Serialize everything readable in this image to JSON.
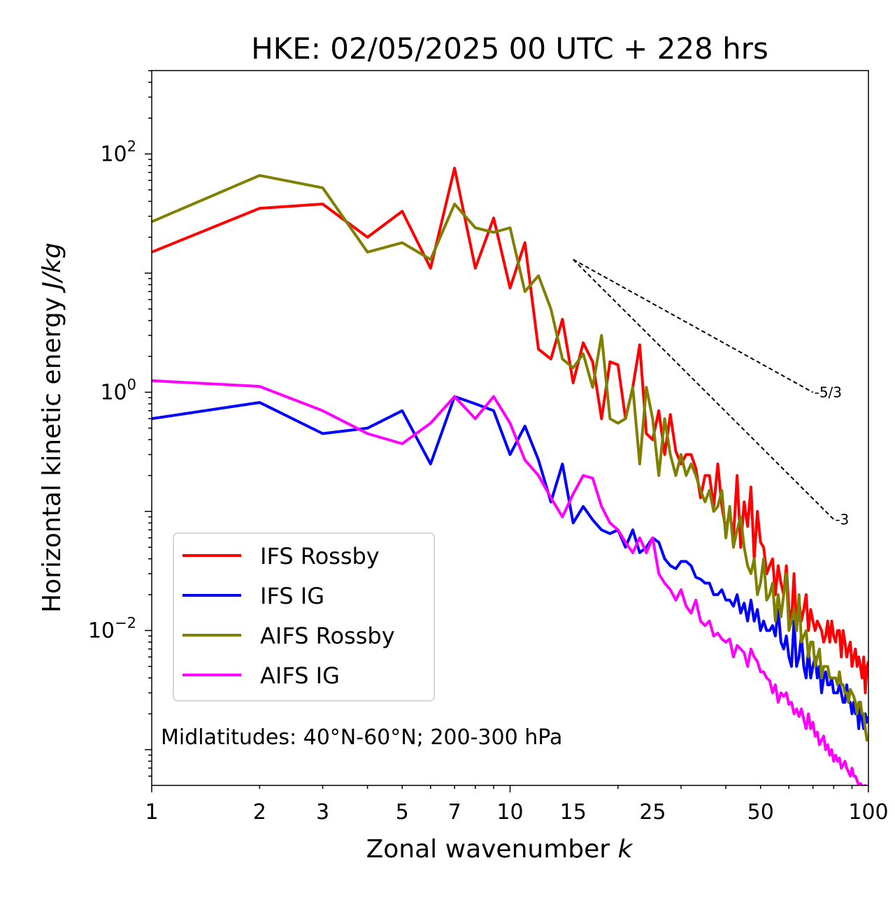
{
  "chart_data": {
    "type": "line",
    "title": "HKE: 02/05/2025 00 UTC + 228 hrs",
    "xlabel": "Zonal wavenumber",
    "xlabel_var": "k",
    "ylabel": "Horizontal kinetic energy",
    "ylabel_units": "J/kg",
    "x_scale": "log",
    "y_scale": "log",
    "xlim": [
      1,
      100
    ],
    "ylim_log10": [
      -3.3,
      2.7
    ],
    "x_ticks": [
      1,
      2,
      3,
      5,
      7,
      10,
      15,
      25,
      50,
      100
    ],
    "x_tick_labels": [
      "1",
      "2",
      "3",
      "5",
      "7",
      "10",
      "15",
      "25",
      "50",
      "100"
    ],
    "y_ticks_log10": [
      -2,
      0,
      2
    ],
    "y_tick_bases": [
      "10",
      "10",
      "10"
    ],
    "y_tick_exponents": [
      "−2",
      "0",
      "2"
    ],
    "annotation": "Midlatitudes: 40°N-60°N; 200-300 hPa",
    "legend": {
      "position": "lower-left"
    },
    "reference_lines": [
      {
        "label": "-5/3",
        "slope": -1.6667,
        "x_start": 15,
        "x_end": 70,
        "y_start": 13
      },
      {
        "label": "-3",
        "slope": -3,
        "x_start": 15,
        "x_end": 80,
        "y_start": 13
      }
    ],
    "series": [
      {
        "name": "IFS Rossby",
        "color": "#ff0000",
        "x": [
          1,
          2,
          3,
          4,
          5,
          6,
          7,
          8,
          9,
          10,
          11,
          12,
          13,
          14,
          15,
          16,
          17,
          18,
          19,
          20,
          21,
          22,
          23,
          24,
          25,
          26,
          27,
          28,
          29,
          30,
          31,
          32,
          33,
          34,
          35,
          36,
          37,
          38,
          39,
          40,
          41,
          42,
          43,
          44,
          45,
          46,
          47,
          48,
          49,
          50,
          51,
          52,
          53,
          54,
          55,
          56,
          57,
          58,
          59,
          60,
          61,
          62,
          63,
          64,
          65,
          66,
          67,
          68,
          69,
          70,
          71,
          72,
          73,
          74,
          75,
          76,
          77,
          78,
          79,
          80,
          81,
          82,
          83,
          84,
          85,
          86,
          87,
          88,
          89,
          90,
          91,
          92,
          93,
          94,
          95,
          96,
          97,
          98,
          99,
          100
        ],
        "y": [
          15,
          35,
          38,
          20,
          33,
          11,
          76,
          11,
          29,
          7.5,
          18,
          2.3,
          1.9,
          4.1,
          1.2,
          2.6,
          1.8,
          0.6,
          1.8,
          1.7,
          0.6,
          1.1,
          2.5,
          0.45,
          0.4,
          0.7,
          0.3,
          0.65,
          0.32,
          0.25,
          0.3,
          0.3,
          0.23,
          0.13,
          0.2,
          0.2,
          0.11,
          0.25,
          0.11,
          0.07,
          0.1,
          0.06,
          0.2,
          0.05,
          0.12,
          0.075,
          0.16,
          0.04,
          0.1,
          0.055,
          0.05,
          0.03,
          0.035,
          0.04,
          0.02,
          0.035,
          0.025,
          0.02,
          0.035,
          0.015,
          0.012,
          0.03,
          0.01,
          0.018,
          0.012,
          0.015,
          0.02,
          0.01,
          0.015,
          0.012,
          0.01,
          0.012,
          0.011,
          0.01,
          0.008,
          0.009,
          0.012,
          0.008,
          0.012,
          0.009,
          0.008,
          0.01,
          0.01,
          0.006,
          0.01,
          0.008,
          0.006,
          0.007,
          0.008,
          0.005,
          0.006,
          0.007,
          0.005,
          0.006,
          0.005,
          0.004,
          0.006,
          0.003,
          0.005,
          0.0055
        ]
      },
      {
        "name": "IFS IG",
        "color": "#0000ff",
        "x": [
          1,
          2,
          3,
          4,
          5,
          6,
          7,
          8,
          9,
          10,
          11,
          12,
          13,
          14,
          15,
          16,
          17,
          18,
          19,
          20,
          21,
          22,
          23,
          24,
          25,
          26,
          27,
          28,
          29,
          30,
          31,
          32,
          33,
          34,
          35,
          36,
          37,
          38,
          39,
          40,
          41,
          42,
          43,
          44,
          45,
          46,
          47,
          48,
          49,
          50,
          51,
          52,
          53,
          54,
          55,
          56,
          57,
          58,
          59,
          60,
          61,
          62,
          63,
          64,
          65,
          66,
          67,
          68,
          69,
          70,
          71,
          72,
          73,
          74,
          75,
          76,
          77,
          78,
          79,
          80,
          81,
          82,
          83,
          84,
          85,
          86,
          87,
          88,
          89,
          90,
          91,
          92,
          93,
          94,
          95,
          96,
          97,
          98,
          99,
          100
        ],
        "y": [
          0.6,
          0.82,
          0.45,
          0.5,
          0.7,
          0.25,
          0.92,
          0.8,
          0.7,
          0.3,
          0.52,
          0.27,
          0.12,
          0.25,
          0.08,
          0.11,
          0.085,
          0.07,
          0.065,
          0.07,
          0.05,
          0.07,
          0.045,
          0.05,
          0.06,
          0.055,
          0.04,
          0.035,
          0.033,
          0.038,
          0.038,
          0.035,
          0.028,
          0.027,
          0.025,
          0.025,
          0.02,
          0.02,
          0.022,
          0.018,
          0.018,
          0.016,
          0.02,
          0.014,
          0.017,
          0.012,
          0.018,
          0.012,
          0.015,
          0.01,
          0.012,
          0.01,
          0.01,
          0.011,
          0.009,
          0.015,
          0.008,
          0.007,
          0.009,
          0.006,
          0.005,
          0.012,
          0.005,
          0.006,
          0.009,
          0.005,
          0.004,
          0.007,
          0.004,
          0.005,
          0.006,
          0.004,
          0.005,
          0.003,
          0.004,
          0.0045,
          0.0035,
          0.0035,
          0.004,
          0.003,
          0.003,
          0.003,
          0.0035,
          0.003,
          0.0025,
          0.0025,
          0.0035,
          0.0025,
          0.0025,
          0.002,
          0.0025,
          0.002,
          0.0022,
          0.0015,
          0.0025,
          0.0018,
          0.0015,
          0.002,
          0.0017,
          0.0019
        ]
      },
      {
        "name": "AIFS Rossby",
        "color": "#808000",
        "x": [
          1,
          2,
          3,
          4,
          5,
          6,
          7,
          8,
          9,
          10,
          11,
          12,
          13,
          14,
          15,
          16,
          17,
          18,
          19,
          20,
          21,
          22,
          23,
          24,
          25,
          26,
          27,
          28,
          29,
          30,
          31,
          32,
          33,
          34,
          35,
          36,
          37,
          38,
          39,
          40,
          41,
          42,
          43,
          44,
          45,
          46,
          47,
          48,
          49,
          50,
          51,
          52,
          53,
          54,
          55,
          56,
          57,
          58,
          59,
          60,
          61,
          62,
          63,
          64,
          65,
          66,
          67,
          68,
          69,
          70,
          71,
          72,
          73,
          74,
          75,
          76,
          77,
          78,
          79,
          80,
          81,
          82,
          83,
          84,
          85,
          86,
          87,
          88,
          89,
          90,
          91,
          92,
          93,
          94,
          95,
          96,
          97,
          98,
          99,
          100
        ],
        "y": [
          27,
          66,
          52,
          15,
          18,
          13,
          38,
          24,
          22,
          24,
          7,
          9.5,
          5,
          1.9,
          1.6,
          2.1,
          1.1,
          3,
          0.6,
          0.55,
          0.6,
          1.1,
          0.25,
          1.1,
          0.6,
          0.2,
          0.6,
          0.3,
          0.2,
          0.3,
          0.2,
          0.25,
          0.2,
          0.15,
          0.12,
          0.15,
          0.1,
          0.11,
          0.15,
          0.06,
          0.11,
          0.05,
          0.07,
          0.09,
          0.05,
          0.035,
          0.03,
          0.04,
          0.02,
          0.025,
          0.04,
          0.018,
          0.02,
          0.025,
          0.012,
          0.02,
          0.013,
          0.02,
          0.03,
          0.01,
          0.012,
          0.015,
          0.01,
          0.02,
          0.008,
          0.009,
          0.01,
          0.006,
          0.008,
          0.008,
          0.005,
          0.006,
          0.007,
          0.004,
          0.005,
          0.005,
          0.005,
          0.004,
          0.004,
          0.004,
          0.004,
          0.0035,
          0.0045,
          0.0035,
          0.0035,
          0.003,
          0.003,
          0.0025,
          0.0032,
          0.003,
          0.0028,
          0.0025,
          0.002,
          0.0025,
          0.0025,
          0.002,
          0.002,
          0.0015,
          0.0012,
          0.0013
        ]
      },
      {
        "name": "AIFS IG",
        "color": "#ff00ff",
        "x": [
          1,
          2,
          3,
          4,
          5,
          6,
          7,
          8,
          9,
          10,
          11,
          12,
          13,
          14,
          15,
          16,
          17,
          18,
          19,
          20,
          21,
          22,
          23,
          24,
          25,
          26,
          27,
          28,
          29,
          30,
          31,
          32,
          33,
          34,
          35,
          36,
          37,
          38,
          39,
          40,
          41,
          42,
          43,
          44,
          45,
          46,
          47,
          48,
          49,
          50,
          51,
          52,
          53,
          54,
          55,
          56,
          57,
          58,
          59,
          60,
          61,
          62,
          63,
          64,
          65,
          66,
          67,
          68,
          69,
          70,
          71,
          72,
          73,
          74,
          75,
          76,
          77,
          78,
          79,
          80,
          81,
          82,
          83,
          84,
          85,
          86,
          87,
          88,
          89,
          90,
          91,
          92,
          93,
          94,
          95,
          96,
          97,
          98,
          99,
          100
        ],
        "y": [
          1.25,
          1.12,
          0.7,
          0.45,
          0.37,
          0.55,
          0.92,
          0.6,
          0.92,
          0.55,
          0.27,
          0.2,
          0.13,
          0.09,
          0.14,
          0.2,
          0.19,
          0.11,
          0.08,
          0.07,
          0.055,
          0.045,
          0.06,
          0.045,
          0.06,
          0.03,
          0.025,
          0.022,
          0.018,
          0.022,
          0.016,
          0.014,
          0.018,
          0.012,
          0.011,
          0.012,
          0.009,
          0.0095,
          0.0085,
          0.008,
          0.0085,
          0.006,
          0.0075,
          0.007,
          0.0065,
          0.005,
          0.007,
          0.006,
          0.0055,
          0.0045,
          0.0045,
          0.004,
          0.0038,
          0.003,
          0.0035,
          0.0025,
          0.003,
          0.0028,
          0.003,
          0.0024,
          0.0025,
          0.002,
          0.0022,
          0.0019,
          0.0022,
          0.0018,
          0.0015,
          0.002,
          0.0015,
          0.0017,
          0.0013,
          0.0014,
          0.0011,
          0.0012,
          0.0013,
          0.001,
          0.0011,
          0.0009,
          0.001,
          0.0008,
          0.0009,
          0.0008,
          0.00085,
          0.0007,
          0.00075,
          0.0008,
          0.0007,
          0.00065,
          0.0006,
          0.0007,
          0.0006,
          0.0006,
          0.00055,
          0.0005,
          0.00052,
          0.0005,
          0.00045,
          0.0005,
          0.00048,
          0.00045
        ]
      }
    ]
  }
}
